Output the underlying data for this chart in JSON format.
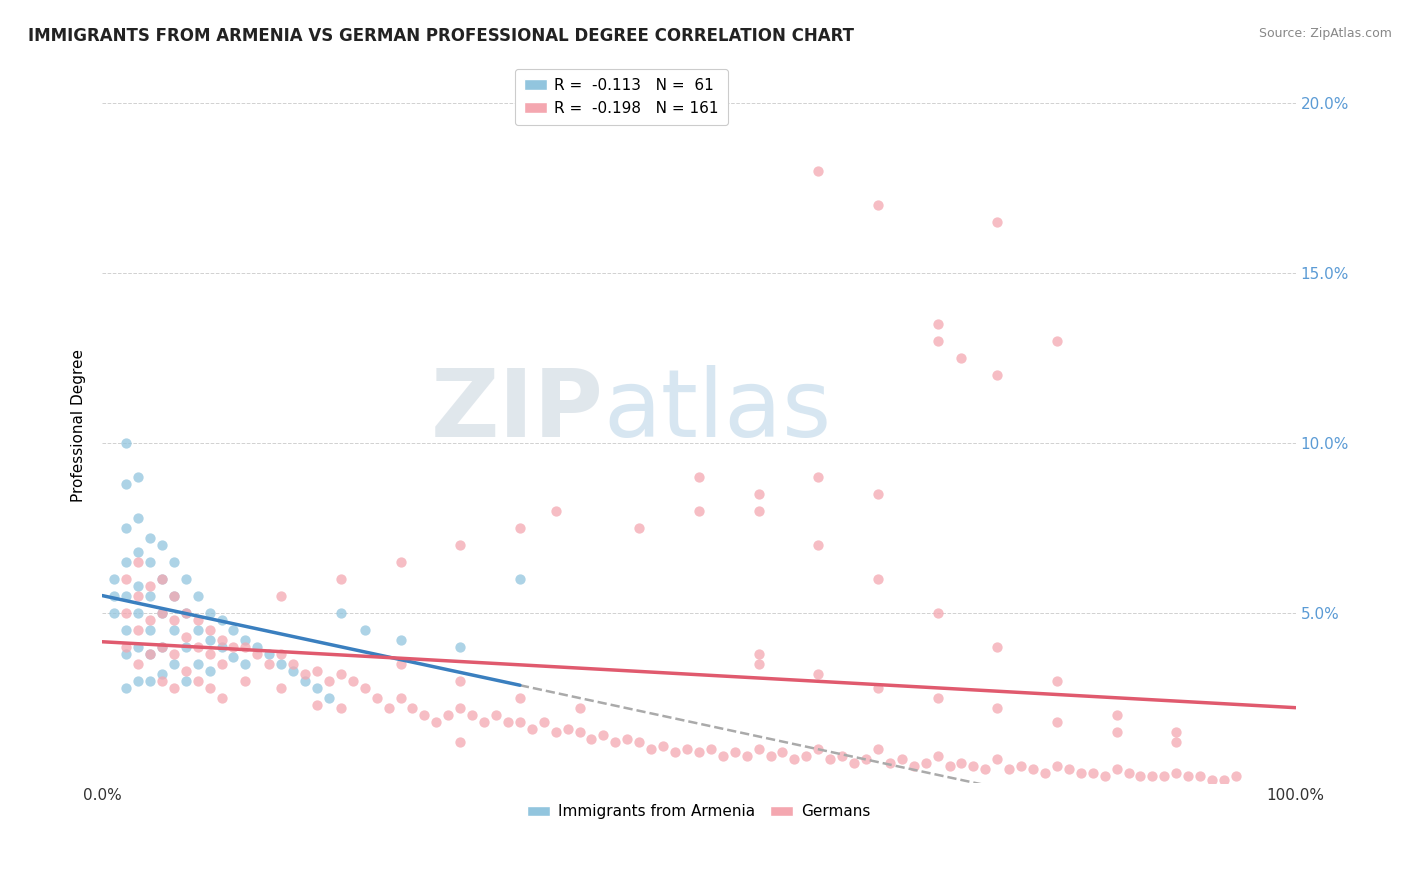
{
  "title": "IMMIGRANTS FROM ARMENIA VS GERMAN PROFESSIONAL DEGREE CORRELATION CHART",
  "source": "Source: ZipAtlas.com",
  "ylabel": "Professional Degree",
  "legend_labels": [
    "Immigrants from Armenia",
    "Germans"
  ],
  "armenia_color": "#92c5de",
  "germany_color": "#f4a7b0",
  "armenia_line_color": "#3a7fbf",
  "germany_line_color": "#e05a6e",
  "dash_color": "#aaaaaa",
  "armenia_R": -0.113,
  "armenia_N": 61,
  "germany_R": -0.198,
  "germany_N": 161,
  "watermark_zip": "ZIP",
  "watermark_atlas": "atlas",
  "xlim": [
    0,
    1.0
  ],
  "ylim": [
    0,
    0.21
  ],
  "armenia_scatter_x": [
    0.01,
    0.01,
    0.01,
    0.02,
    0.02,
    0.02,
    0.02,
    0.02,
    0.02,
    0.02,
    0.02,
    0.03,
    0.03,
    0.03,
    0.03,
    0.03,
    0.03,
    0.03,
    0.04,
    0.04,
    0.04,
    0.04,
    0.04,
    0.04,
    0.05,
    0.05,
    0.05,
    0.05,
    0.05,
    0.06,
    0.06,
    0.06,
    0.06,
    0.07,
    0.07,
    0.07,
    0.07,
    0.08,
    0.08,
    0.08,
    0.09,
    0.09,
    0.09,
    0.1,
    0.1,
    0.11,
    0.11,
    0.12,
    0.12,
    0.13,
    0.14,
    0.15,
    0.16,
    0.17,
    0.18,
    0.19,
    0.2,
    0.22,
    0.25,
    0.3,
    0.35
  ],
  "armenia_scatter_y": [
    0.06,
    0.055,
    0.05,
    0.1,
    0.088,
    0.075,
    0.065,
    0.055,
    0.045,
    0.038,
    0.028,
    0.09,
    0.078,
    0.068,
    0.058,
    0.05,
    0.04,
    0.03,
    0.072,
    0.065,
    0.055,
    0.045,
    0.038,
    0.03,
    0.07,
    0.06,
    0.05,
    0.04,
    0.032,
    0.065,
    0.055,
    0.045,
    0.035,
    0.06,
    0.05,
    0.04,
    0.03,
    0.055,
    0.045,
    0.035,
    0.05,
    0.042,
    0.033,
    0.048,
    0.04,
    0.045,
    0.037,
    0.042,
    0.035,
    0.04,
    0.038,
    0.035,
    0.033,
    0.03,
    0.028,
    0.025,
    0.05,
    0.045,
    0.042,
    0.04,
    0.06
  ],
  "germany_scatter_x": [
    0.02,
    0.02,
    0.02,
    0.03,
    0.03,
    0.03,
    0.03,
    0.04,
    0.04,
    0.04,
    0.05,
    0.05,
    0.05,
    0.05,
    0.06,
    0.06,
    0.06,
    0.06,
    0.07,
    0.07,
    0.07,
    0.08,
    0.08,
    0.08,
    0.09,
    0.09,
    0.09,
    0.1,
    0.1,
    0.1,
    0.11,
    0.12,
    0.12,
    0.13,
    0.14,
    0.15,
    0.15,
    0.16,
    0.17,
    0.18,
    0.18,
    0.19,
    0.2,
    0.2,
    0.21,
    0.22,
    0.23,
    0.24,
    0.25,
    0.26,
    0.27,
    0.28,
    0.29,
    0.3,
    0.3,
    0.31,
    0.32,
    0.33,
    0.34,
    0.35,
    0.36,
    0.37,
    0.38,
    0.39,
    0.4,
    0.41,
    0.42,
    0.43,
    0.44,
    0.45,
    0.46,
    0.47,
    0.48,
    0.49,
    0.5,
    0.51,
    0.52,
    0.53,
    0.54,
    0.55,
    0.56,
    0.57,
    0.58,
    0.59,
    0.6,
    0.61,
    0.62,
    0.63,
    0.64,
    0.65,
    0.66,
    0.67,
    0.68,
    0.69,
    0.7,
    0.71,
    0.72,
    0.73,
    0.74,
    0.75,
    0.76,
    0.77,
    0.78,
    0.79,
    0.8,
    0.81,
    0.82,
    0.83,
    0.84,
    0.85,
    0.86,
    0.87,
    0.88,
    0.89,
    0.9,
    0.91,
    0.92,
    0.93,
    0.94,
    0.95,
    0.7,
    0.72,
    0.75,
    0.65,
    0.6,
    0.55,
    0.5,
    0.45,
    0.38,
    0.35,
    0.3,
    0.25,
    0.2,
    0.15,
    0.6,
    0.65,
    0.7,
    0.75,
    0.8,
    0.5,
    0.55,
    0.6,
    0.65,
    0.7,
    0.75,
    0.8,
    0.85,
    0.9,
    0.55,
    0.6,
    0.65,
    0.7,
    0.75,
    0.8,
    0.85,
    0.9,
    0.55,
    0.25,
    0.3,
    0.35,
    0.4
  ],
  "germany_scatter_y": [
    0.06,
    0.05,
    0.04,
    0.065,
    0.055,
    0.045,
    0.035,
    0.058,
    0.048,
    0.038,
    0.06,
    0.05,
    0.04,
    0.03,
    0.055,
    0.048,
    0.038,
    0.028,
    0.05,
    0.043,
    0.033,
    0.048,
    0.04,
    0.03,
    0.045,
    0.038,
    0.028,
    0.042,
    0.035,
    0.025,
    0.04,
    0.04,
    0.03,
    0.038,
    0.035,
    0.038,
    0.028,
    0.035,
    0.032,
    0.033,
    0.023,
    0.03,
    0.032,
    0.022,
    0.03,
    0.028,
    0.025,
    0.022,
    0.025,
    0.022,
    0.02,
    0.018,
    0.02,
    0.022,
    0.012,
    0.02,
    0.018,
    0.02,
    0.018,
    0.018,
    0.016,
    0.018,
    0.015,
    0.016,
    0.015,
    0.013,
    0.014,
    0.012,
    0.013,
    0.012,
    0.01,
    0.011,
    0.009,
    0.01,
    0.009,
    0.01,
    0.008,
    0.009,
    0.008,
    0.01,
    0.008,
    0.009,
    0.007,
    0.008,
    0.01,
    0.007,
    0.008,
    0.006,
    0.007,
    0.01,
    0.006,
    0.007,
    0.005,
    0.006,
    0.008,
    0.005,
    0.006,
    0.005,
    0.004,
    0.007,
    0.004,
    0.005,
    0.004,
    0.003,
    0.005,
    0.004,
    0.003,
    0.003,
    0.002,
    0.004,
    0.003,
    0.002,
    0.002,
    0.002,
    0.003,
    0.002,
    0.002,
    0.001,
    0.001,
    0.002,
    0.13,
    0.125,
    0.12,
    0.085,
    0.09,
    0.085,
    0.08,
    0.075,
    0.08,
    0.075,
    0.07,
    0.065,
    0.06,
    0.055,
    0.18,
    0.17,
    0.135,
    0.165,
    0.13,
    0.09,
    0.08,
    0.07,
    0.06,
    0.05,
    0.04,
    0.03,
    0.02,
    0.015,
    0.038,
    0.032,
    0.028,
    0.025,
    0.022,
    0.018,
    0.015,
    0.012,
    0.035,
    0.035,
    0.03,
    0.025,
    0.022
  ]
}
